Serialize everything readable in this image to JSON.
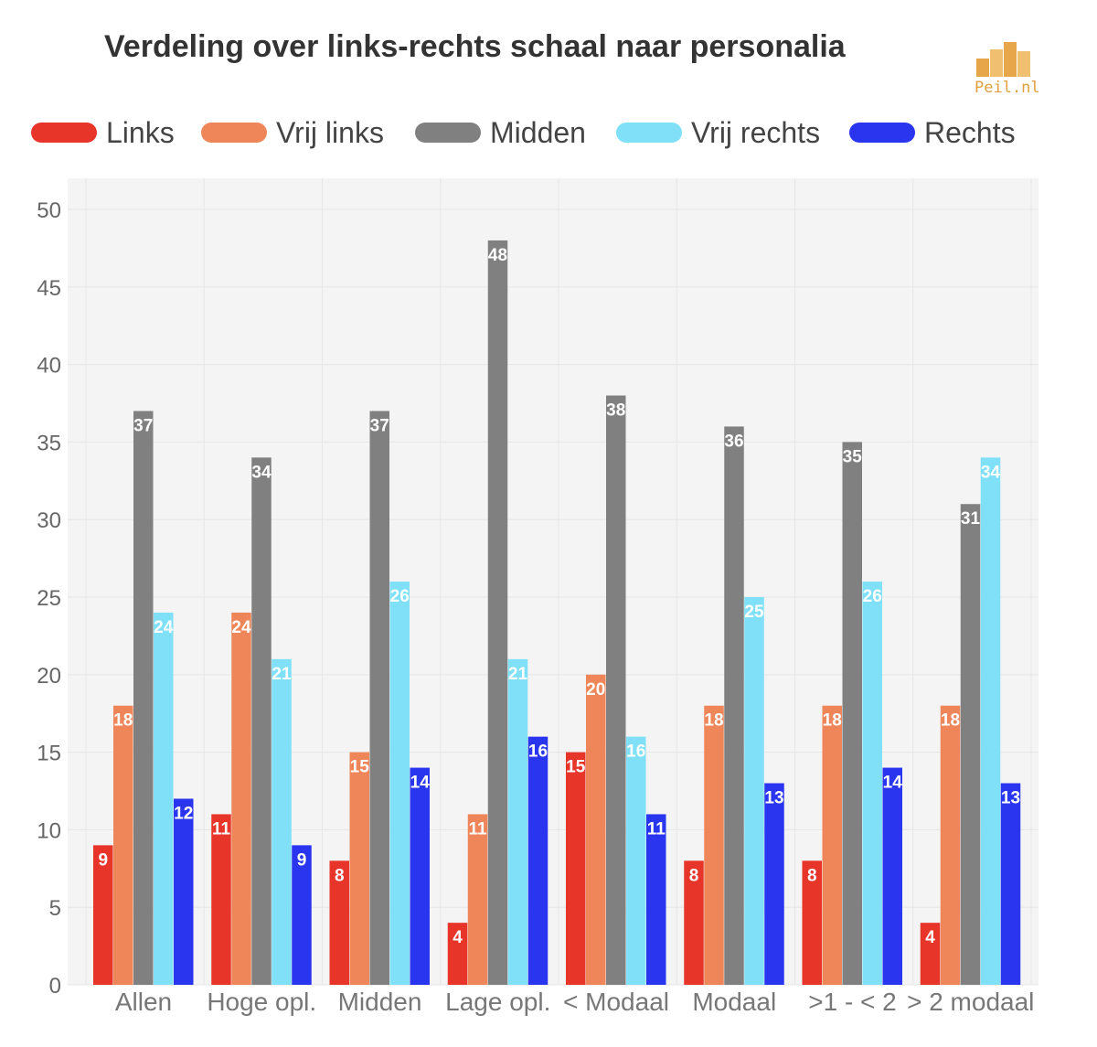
{
  "title": "Verdeling over links-rechts schaal naar personalia",
  "logo": {
    "text": "Peil.nl",
    "icon": "bar-chart-logo-icon",
    "color": "#e0a040"
  },
  "chart_data": {
    "type": "bar",
    "categories": [
      "Allen",
      "Hoge opl.",
      "Midden",
      "Lage opl.",
      "< Modaal",
      "Modaal",
      ">1 - < 2",
      "> 2 modaal"
    ],
    "series": [
      {
        "name": "Links",
        "color": "#e8352a",
        "values": [
          9,
          11,
          8,
          4,
          15,
          8,
          8,
          4
        ]
      },
      {
        "name": "Vrij links",
        "color": "#ee865a",
        "values": [
          18,
          24,
          15,
          11,
          20,
          18,
          18,
          18
        ]
      },
      {
        "name": "Midden",
        "color": "#808080",
        "values": [
          37,
          34,
          37,
          48,
          38,
          36,
          35,
          31
        ]
      },
      {
        "name": "Vrij rechts",
        "color": "#7fe0f8",
        "values": [
          24,
          21,
          26,
          21,
          16,
          25,
          26,
          34
        ]
      },
      {
        "name": "Rechts",
        "color": "#2a35f0",
        "values": [
          12,
          9,
          14,
          16,
          11,
          13,
          14,
          13
        ]
      }
    ],
    "ylim": [
      0,
      50
    ],
    "yticks": [
      0,
      5,
      10,
      15,
      20,
      25,
      30,
      35,
      40,
      45,
      50
    ],
    "grid": true,
    "legend": "top",
    "data_labels": true
  }
}
